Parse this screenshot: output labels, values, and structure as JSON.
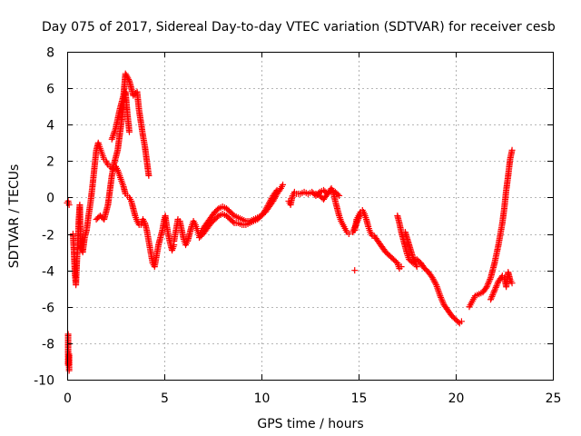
{
  "chart_data": {
    "type": "scatter",
    "title": "Day 075 of 2017, Sidereal Day-to-day VTEC variation (SDTVAR) for receiver cesb",
    "xlabel": "GPS time / hours",
    "ylabel": "SDTVAR / TECUs",
    "xlim": [
      0,
      25
    ],
    "ylim": [
      -10,
      8
    ],
    "xticks": [
      0,
      5,
      10,
      15,
      20,
      25
    ],
    "yticks": [
      -10,
      -8,
      -6,
      -4,
      -2,
      0,
      2,
      4,
      6,
      8
    ],
    "xtick_labels": [
      "0",
      "5",
      "10",
      "15",
      "20",
      "25"
    ],
    "ytick_labels": [
      "-10",
      "-8",
      "-6",
      "-4",
      "-2",
      "0",
      "2",
      "4",
      "6",
      "8"
    ],
    "grid": true,
    "marker": "+",
    "color": "#ff0000",
    "series": [
      {
        "name": "SDTVAR",
        "segments": [
          {
            "x": [
              0.0,
              0.05,
              0.1
            ],
            "y": [
              -0.3,
              -0.2,
              -0.4
            ]
          },
          {
            "x": [
              0.05,
              0.05,
              0.05,
              0.1,
              0.1
            ],
            "y": [
              -7.5,
              -8.0,
              -9.2,
              -8.6,
              -9.5
            ]
          },
          {
            "x": [
              0.3,
              0.35,
              0.4,
              0.45,
              0.5,
              0.55,
              0.6,
              0.65,
              0.7,
              0.8,
              0.9,
              1.0,
              1.1,
              1.2,
              1.3,
              1.4,
              1.5,
              1.6,
              1.7,
              1.8,
              1.9,
              2.0,
              2.1,
              2.2,
              2.3,
              2.4,
              2.5,
              2.6,
              2.7,
              2.8,
              2.9,
              3.0,
              3.1,
              3.2,
              3.3,
              3.4,
              3.5,
              3.6,
              3.7,
              3.8,
              3.9,
              4.0,
              4.1,
              4.2,
              4.3,
              4.4,
              4.5,
              4.6,
              4.7,
              4.8,
              4.9,
              5.0,
              5.05,
              5.1,
              5.2,
              5.3,
              5.4,
              5.5
            ],
            "y": [
              -2.0,
              -3.0,
              -4.2,
              -4.8,
              -3.5,
              -2.5,
              -1.2,
              -0.4,
              -2.8,
              -3.0,
              -2.2,
              -1.8,
              -1.0,
              -0.3,
              0.6,
              1.6,
              2.6,
              3.0,
              2.7,
              2.4,
              2.1,
              2.0,
              1.8,
              1.7,
              1.6,
              1.6,
              1.7,
              1.5,
              1.2,
              0.9,
              0.6,
              0.2,
              0.1,
              0.0,
              -0.2,
              -0.6,
              -1.0,
              -1.3,
              -1.5,
              -1.5,
              -1.2,
              -1.4,
              -1.8,
              -2.4,
              -3.0,
              -3.6,
              -3.8,
              -3.2,
              -2.6,
              -2.2,
              -1.8,
              -1.2,
              -1.0,
              -1.4,
              -2.0,
              -2.5,
              -2.9,
              -2.6
            ]
          },
          {
            "x": [
              1.5,
              1.7,
              1.9,
              2.0,
              2.1,
              2.2,
              2.3,
              2.4,
              2.5,
              2.6,
              2.7,
              2.8,
              2.9,
              3.0,
              3.1,
              3.2
            ],
            "y": [
              -1.2,
              -1.0,
              -1.2,
              -0.8,
              -0.4,
              0.4,
              1.2,
              1.8,
              2.2,
              2.6,
              3.4,
              4.2,
              5.0,
              5.8,
              4.6,
              3.6
            ]
          },
          {
            "x": [
              2.3,
              2.5,
              2.7,
              2.9,
              3.0,
              3.2,
              3.4,
              3.6,
              3.7,
              3.9,
              4.0,
              4.2
            ],
            "y": [
              3.2,
              3.8,
              4.8,
              5.6,
              6.8,
              6.4,
              5.6,
              5.8,
              4.8,
              3.4,
              2.8,
              1.2
            ]
          },
          {
            "x": [
              5.5,
              5.6,
              5.7,
              5.8,
              5.9,
              6.0,
              6.1,
              6.2,
              6.3,
              6.4,
              6.5,
              6.6,
              6.7,
              6.8,
              6.9,
              7.0,
              7.2,
              7.4,
              7.6,
              7.8,
              8.0,
              8.2,
              8.4,
              8.6,
              8.8,
              9.0,
              9.2,
              9.4,
              9.6,
              9.8,
              10.0,
              10.2,
              10.4,
              10.6,
              10.8,
              11.0,
              11.1
            ],
            "y": [
              -2.4,
              -1.8,
              -1.2,
              -1.3,
              -1.8,
              -2.3,
              -2.6,
              -2.4,
              -2.0,
              -1.6,
              -1.3,
              -1.5,
              -1.8,
              -2.1,
              -1.9,
              -1.7,
              -1.4,
              -1.1,
              -0.8,
              -0.6,
              -0.5,
              -0.6,
              -0.8,
              -1.0,
              -1.1,
              -1.2,
              -1.3,
              -1.3,
              -1.2,
              -1.1,
              -1.0,
              -0.8,
              -0.5,
              -0.2,
              0.2,
              0.5,
              0.7
            ]
          },
          {
            "x": [
              6.8,
              7.0,
              7.2,
              7.4,
              7.6,
              7.8,
              8.0,
              8.2,
              8.4,
              8.6,
              8.8,
              9.0,
              9.2,
              9.4,
              9.6,
              9.8,
              10.0,
              10.2,
              10.4,
              10.6,
              10.8
            ],
            "y": [
              -2.2,
              -2.0,
              -1.7,
              -1.4,
              -1.2,
              -1.0,
              -0.9,
              -1.0,
              -1.2,
              -1.4,
              -1.4,
              -1.5,
              -1.5,
              -1.4,
              -1.3,
              -1.2,
              -1.0,
              -0.7,
              -0.3,
              0.1,
              0.4
            ]
          },
          {
            "x": [
              11.4,
              11.5,
              11.6,
              11.7,
              11.8,
              12.0,
              12.2,
              12.4,
              12.6,
              12.8,
              13.0,
              13.2,
              13.4,
              13.6,
              13.7,
              13.8,
              13.9,
              14.0,
              14.1,
              14.2,
              14.3,
              14.4,
              14.5
            ],
            "y": [
              -0.2,
              -0.4,
              0.1,
              0.3,
              0.2,
              0.2,
              0.3,
              0.2,
              0.3,
              0.1,
              0.3,
              0.4,
              0.2,
              0.5,
              0.3,
              -0.2,
              -0.6,
              -1.0,
              -1.3,
              -1.5,
              -1.7,
              -1.9,
              -2.0
            ]
          },
          {
            "x": [
              12.8,
              13.0,
              13.2,
              13.4,
              13.6,
              13.8,
              14.0
            ],
            "y": [
              0.2,
              0.1,
              -0.1,
              0.2,
              0.4,
              0.3,
              0.1
            ]
          },
          {
            "x": [
              14.8
            ],
            "y": [
              -4.0
            ]
          },
          {
            "x": [
              14.8,
              14.9,
              15.0,
              15.1,
              15.2,
              15.3,
              15.4,
              15.5,
              15.6,
              15.7,
              15.8,
              16.0,
              16.2,
              16.4,
              16.6,
              16.8,
              17.0,
              17.1,
              17.2
            ],
            "y": [
              -1.8,
              -1.2,
              -1.0,
              -0.8,
              -0.7,
              -0.9,
              -1.2,
              -1.6,
              -1.9,
              -2.1,
              -2.1,
              -2.4,
              -2.7,
              -3.0,
              -3.2,
              -3.4,
              -3.6,
              -3.9,
              -3.8
            ]
          },
          {
            "x": [
              14.7,
              14.9,
              15.1
            ],
            "y": [
              -1.9,
              -1.4,
              -0.9
            ]
          },
          {
            "x": [
              17.0,
              17.1,
              17.2,
              17.3,
              17.4,
              17.5,
              17.6,
              17.8,
              18.0,
              18.2,
              18.4,
              18.6,
              18.8,
              19.0,
              19.2,
              19.4,
              19.6,
              19.8,
              20.0,
              20.2,
              20.3
            ],
            "y": [
              -1.0,
              -1.4,
              -1.9,
              -2.3,
              -2.7,
              -3.1,
              -3.4,
              -3.6,
              -3.4,
              -3.6,
              -3.9,
              -4.1,
              -4.4,
              -4.8,
              -5.4,
              -5.9,
              -6.2,
              -6.5,
              -6.7,
              -6.9,
              -6.8
            ]
          },
          {
            "x": [
              17.4,
              17.6,
              17.8,
              18.0
            ],
            "y": [
              -1.9,
              -2.6,
              -3.3,
              -3.8
            ]
          },
          {
            "x": [
              20.7,
              20.8,
              20.9,
              21.0,
              21.2,
              21.4,
              21.6,
              21.8,
              21.9,
              22.0,
              22.1,
              22.2,
              22.3,
              22.4,
              22.5,
              22.6,
              22.7,
              22.8,
              22.9
            ],
            "y": [
              -6.0,
              -5.8,
              -5.6,
              -5.4,
              -5.3,
              -5.2,
              -4.9,
              -4.4,
              -4.0,
              -3.6,
              -3.1,
              -2.6,
              -2.0,
              -1.4,
              -0.6,
              0.4,
              1.2,
              2.1,
              2.6
            ]
          },
          {
            "x": [
              21.8,
              22.0,
              22.2,
              22.4,
              22.5,
              22.6,
              22.7,
              22.8,
              22.9
            ],
            "y": [
              -5.6,
              -5.1,
              -4.6,
              -4.3,
              -4.4,
              -4.9,
              -4.1,
              -4.5,
              -4.7
            ]
          }
        ]
      }
    ]
  }
}
